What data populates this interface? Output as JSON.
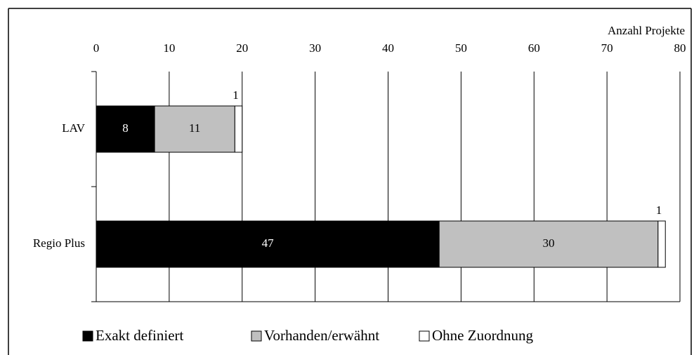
{
  "chart_data": {
    "type": "stacked-barh",
    "x_label": "Anzahl Projekte",
    "categories": [
      "LAV",
      "Regio Plus"
    ],
    "series": [
      {
        "name": "Exakt definiert",
        "color": "#000000",
        "label_color": "#ffffff",
        "values": [
          8,
          47
        ]
      },
      {
        "name": "Vorhanden/erwähnt",
        "color": "#c0c0c0",
        "label_color": "#000000",
        "values": [
          11,
          30
        ]
      },
      {
        "name": "Ohne Zuordnung",
        "color": "#ffffff",
        "label_color": "#000000",
        "values": [
          1,
          1
        ]
      }
    ],
    "xlim": [
      0,
      80
    ],
    "xticks": [
      0,
      10,
      20,
      30,
      40,
      50,
      60,
      70,
      80
    ],
    "grid": true
  }
}
